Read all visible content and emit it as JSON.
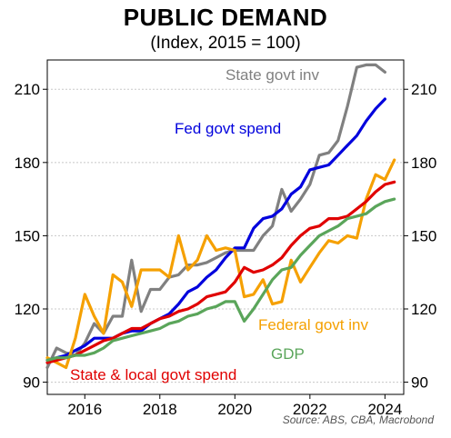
{
  "chart_data": {
    "type": "line",
    "title": "PUBLIC DEMAND",
    "subtitle": "(Index, 2015 = 100)",
    "source": "Source: ABS, CBA, Macrobond",
    "xlim": [
      2015,
      2024.5
    ],
    "ylim": [
      85,
      222
    ],
    "x_ticks": [
      2016,
      2018,
      2020,
      2022,
      2024
    ],
    "x_tick_labels": [
      "2016",
      "2018",
      "2020",
      "2022",
      "2024"
    ],
    "y_ticks": [
      90,
      120,
      150,
      180,
      210
    ],
    "y_tick_labels": [
      "90",
      "120",
      "150",
      "180",
      "210"
    ],
    "grid": true,
    "legend": "inline labels",
    "series": [
      {
        "name": "State govt inv",
        "color": "#808080",
        "x": [
          2015.0,
          2015.25,
          2015.5,
          2015.75,
          2016.0,
          2016.25,
          2016.5,
          2016.75,
          2017.0,
          2017.25,
          2017.5,
          2017.75,
          2018.0,
          2018.25,
          2018.5,
          2018.75,
          2019.0,
          2019.25,
          2019.5,
          2019.75,
          2020.0,
          2020.25,
          2020.5,
          2020.75,
          2021.0,
          2021.25,
          2021.5,
          2021.75,
          2022.0,
          2022.25,
          2022.5,
          2022.75,
          2023.0,
          2023.25,
          2023.5,
          2023.75,
          2024.0,
          2024.25
        ],
        "values": [
          96,
          104,
          102,
          101,
          106,
          114,
          110,
          117,
          117,
          140,
          119,
          128,
          128,
          133,
          134,
          138,
          138,
          139,
          141,
          143,
          144,
          144,
          144,
          150,
          154,
          169,
          160,
          165,
          171,
          183,
          184,
          189,
          203,
          219,
          220,
          220,
          217,
          null
        ]
      },
      {
        "name": "Fed govt spend",
        "color": "#0000dd",
        "x": [
          2015.0,
          2015.25,
          2015.5,
          2015.75,
          2016.0,
          2016.25,
          2016.5,
          2016.75,
          2017.0,
          2017.25,
          2017.5,
          2017.75,
          2018.0,
          2018.25,
          2018.5,
          2018.75,
          2019.0,
          2019.25,
          2019.5,
          2019.75,
          2020.0,
          2020.25,
          2020.5,
          2020.75,
          2021.0,
          2021.25,
          2021.5,
          2021.75,
          2022.0,
          2022.25,
          2022.5,
          2022.75,
          2023.0,
          2023.25,
          2023.5,
          2023.75,
          2024.0,
          2024.25
        ],
        "values": [
          99,
          100,
          101,
          103,
          105,
          108,
          108,
          108,
          110,
          111,
          111,
          114,
          116,
          118,
          122,
          127,
          129,
          133,
          136,
          141,
          145,
          145,
          153,
          157,
          158,
          161,
          167,
          170,
          177,
          178,
          179,
          183,
          187,
          191,
          197,
          202,
          206,
          null
        ]
      },
      {
        "name": "Federal govt inv",
        "color": "#f5a000",
        "x": [
          2015.0,
          2015.25,
          2015.5,
          2015.75,
          2016.0,
          2016.25,
          2016.5,
          2016.75,
          2017.0,
          2017.25,
          2017.5,
          2017.75,
          2018.0,
          2018.25,
          2018.5,
          2018.75,
          2019.0,
          2019.25,
          2019.5,
          2019.75,
          2020.0,
          2020.25,
          2020.5,
          2020.75,
          2021.0,
          2021.25,
          2021.5,
          2021.75,
          2022.0,
          2022.25,
          2022.5,
          2022.75,
          2023.0,
          2023.25,
          2023.5,
          2023.75,
          2024.0,
          2024.25
        ],
        "values": [
          100,
          98,
          96,
          108,
          126,
          117,
          110,
          134,
          131,
          121,
          136,
          136,
          136,
          133,
          150,
          136,
          140,
          150,
          144,
          145,
          144,
          125,
          126,
          132,
          122,
          123,
          140,
          131,
          137,
          143,
          148,
          147,
          150,
          149,
          165,
          175,
          173,
          181
        ]
      },
      {
        "name": "State & local govt spend",
        "color": "#e00000",
        "x": [
          2015.0,
          2015.25,
          2015.5,
          2015.75,
          2016.0,
          2016.25,
          2016.5,
          2016.75,
          2017.0,
          2017.25,
          2017.5,
          2017.75,
          2018.0,
          2018.25,
          2018.5,
          2018.75,
          2019.0,
          2019.25,
          2019.5,
          2019.75,
          2020.0,
          2020.25,
          2020.5,
          2020.75,
          2021.0,
          2021.25,
          2021.5,
          2021.75,
          2022.0,
          2022.25,
          2022.5,
          2022.75,
          2023.0,
          2023.25,
          2023.5,
          2023.75,
          2024.0,
          2024.25
        ],
        "values": [
          98,
          99,
          100,
          101,
          103,
          105,
          107,
          108,
          110,
          112,
          112,
          114,
          116,
          117,
          119,
          120,
          122,
          125,
          126,
          127,
          131,
          137,
          135,
          136,
          138,
          141,
          146,
          150,
          153,
          154,
          157,
          157,
          158,
          161,
          164,
          168,
          171,
          172
        ]
      },
      {
        "name": "GDP",
        "color": "#5aa55a",
        "x": [
          2015.0,
          2015.25,
          2015.5,
          2015.75,
          2016.0,
          2016.25,
          2016.5,
          2016.75,
          2017.0,
          2017.25,
          2017.5,
          2017.75,
          2018.0,
          2018.25,
          2018.5,
          2018.75,
          2019.0,
          2019.25,
          2019.5,
          2019.75,
          2020.0,
          2020.25,
          2020.5,
          2020.75,
          2021.0,
          2021.25,
          2021.5,
          2021.75,
          2022.0,
          2022.25,
          2022.5,
          2022.75,
          2023.0,
          2023.25,
          2023.5,
          2023.75,
          2024.0,
          2024.25
        ],
        "values": [
          99,
          100,
          100,
          101,
          101,
          102,
          104,
          107,
          108,
          109,
          110,
          111,
          112,
          114,
          115,
          117,
          118,
          120,
          121,
          123,
          123,
          115,
          120,
          126,
          132,
          136,
          137,
          142,
          146,
          150,
          152,
          154,
          157,
          158,
          159,
          162,
          164,
          165
        ]
      }
    ]
  },
  "annotations": {
    "state_govt_inv": "State govt inv",
    "fed_govt_spend": "Fed govt spend",
    "federal_govt_inv": "Federal govt inv",
    "gdp": "GDP",
    "state_local_govt_spend": "State & local govt spend"
  }
}
